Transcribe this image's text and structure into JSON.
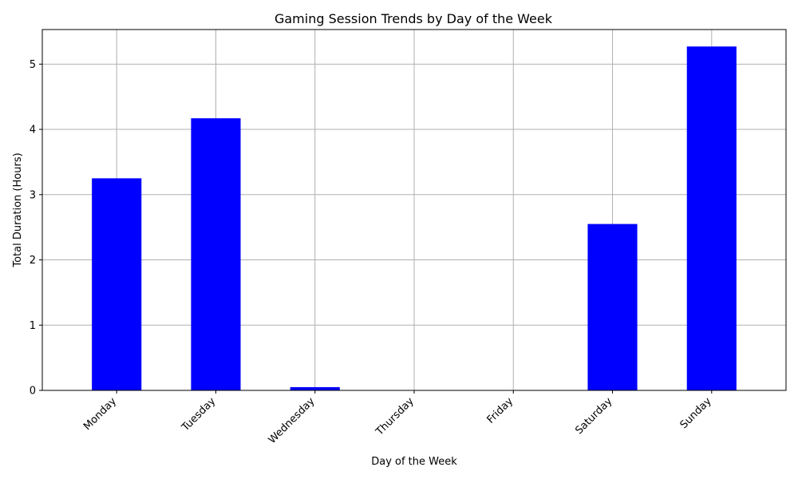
{
  "chart_data": {
    "type": "bar",
    "title": "Gaming Session Trends by Day of the Week",
    "xlabel": "Day of the Week",
    "ylabel": "Total Duration (Hours)",
    "categories": [
      "Monday",
      "Tuesday",
      "Wednesday",
      "Thursday",
      "Friday",
      "Saturday",
      "Sunday"
    ],
    "values": [
      3.25,
      4.17,
      0.05,
      0,
      0,
      2.55,
      5.27
    ],
    "ylim": [
      0,
      5.53
    ],
    "yticks": [
      0,
      1,
      2,
      3,
      4,
      5
    ],
    "grid": true,
    "bar_color": "#0000ff"
  }
}
